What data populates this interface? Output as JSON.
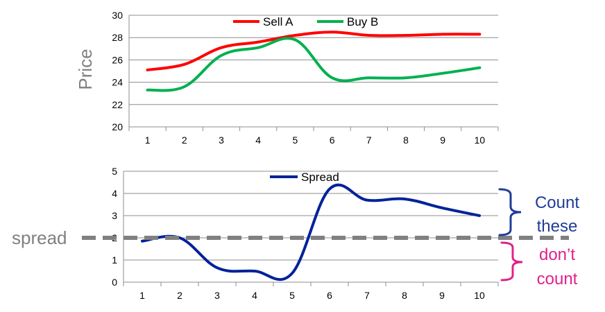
{
  "chart_data": [
    {
      "type": "line",
      "title": "",
      "xlabel": "",
      "ylabel": "Price",
      "categories": [
        "1",
        "2",
        "3",
        "4",
        "5",
        "6",
        "7",
        "8",
        "9",
        "10"
      ],
      "ylim": [
        20,
        30
      ],
      "yticks": [
        "20",
        "22",
        "24",
        "26",
        "28",
        "30"
      ],
      "grid": true,
      "legend": "top-center",
      "series": [
        {
          "name": "Sell A",
          "color": "#ff0000",
          "values": [
            25.1,
            25.6,
            27.1,
            27.6,
            28.2,
            28.5,
            28.2,
            28.2,
            28.3,
            28.3
          ]
        },
        {
          "name": "Buy B",
          "color": "#00b050",
          "values": [
            23.3,
            23.6,
            26.4,
            27.1,
            27.8,
            24.4,
            24.4,
            24.4,
            24.8,
            25.3
          ]
        }
      ]
    },
    {
      "type": "line",
      "title": "",
      "xlabel": "",
      "ylabel": "",
      "categories": [
        "1",
        "2",
        "3",
        "4",
        "5",
        "6",
        "7",
        "8",
        "9",
        "10"
      ],
      "ylim": [
        0,
        5
      ],
      "yticks": [
        "0",
        "1",
        "2",
        "3",
        "4",
        "5"
      ],
      "grid": true,
      "legend": "top-center",
      "series": [
        {
          "name": "Spread",
          "color": "#002299",
          "values": [
            1.85,
            2.0,
            0.65,
            0.5,
            0.4,
            4.2,
            3.7,
            3.75,
            3.35,
            3.0
          ]
        }
      ],
      "threshold": {
        "label": "spread",
        "value": 2,
        "color": "#808080"
      },
      "annotations": [
        {
          "label_lines": [
            "Count",
            "these"
          ],
          "color": "#1f3c99"
        },
        {
          "label_lines": [
            "don’t",
            "count"
          ],
          "color": "#e0218a"
        }
      ]
    }
  ]
}
